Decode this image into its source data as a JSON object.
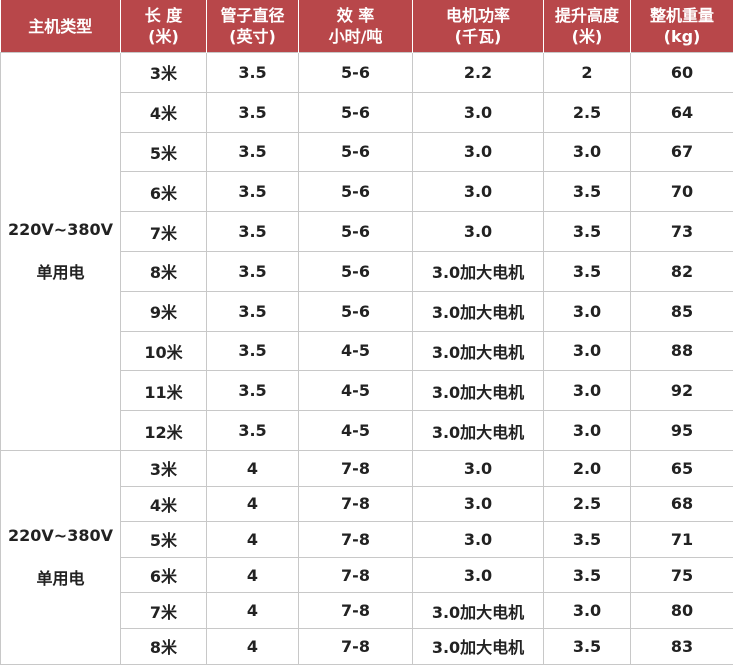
{
  "header": [
    [
      "主机类型"
    ],
    [
      "长 度",
      "(米)"
    ],
    [
      "管子直径",
      "(英寸)"
    ],
    [
      "效 率",
      "小时/吨"
    ],
    [
      "电机功率",
      "(千瓦)"
    ],
    [
      "提升高度",
      "(米)"
    ],
    [
      "整机重量",
      "(kg)"
    ]
  ],
  "groups": [
    {
      "type": [
        "220V~380V",
        "单用电"
      ],
      "rows": [
        [
          "3米",
          "3.5",
          "5-6",
          "2.2",
          "2",
          "60"
        ],
        [
          "4米",
          "3.5",
          "5-6",
          "3.0",
          "2.5",
          "64"
        ],
        [
          "5米",
          "3.5",
          "5-6",
          "3.0",
          "3.0",
          "67"
        ],
        [
          "6米",
          "3.5",
          "5-6",
          "3.0",
          "3.5",
          "70"
        ],
        [
          "7米",
          "3.5",
          "5-6",
          "3.0",
          "3.5",
          "73"
        ],
        [
          "8米",
          "3.5",
          "5-6",
          "3.0加大电机",
          "3.5",
          "82"
        ],
        [
          "9米",
          "3.5",
          "5-6",
          "3.0加大电机",
          "3.0",
          "85"
        ],
        [
          "10米",
          "3.5",
          "4-5",
          "3.0加大电机",
          "3.0",
          "88"
        ],
        [
          "11米",
          "3.5",
          "4-5",
          "3.0加大电机",
          "3.0",
          "92"
        ],
        [
          "12米",
          "3.5",
          "4-5",
          "3.0加大电机",
          "3.0",
          "95"
        ]
      ]
    },
    {
      "type": [
        "220V~380V",
        "单用电"
      ],
      "rows": [
        [
          "3米",
          "4",
          "7-8",
          "3.0",
          "2.0",
          "65"
        ],
        [
          "4米",
          "4",
          "7-8",
          "3.0",
          "2.5",
          "68"
        ],
        [
          "5米",
          "4",
          "7-8",
          "3.0",
          "3.5",
          "71"
        ],
        [
          "6米",
          "4",
          "7-8",
          "3.0",
          "3.5",
          "75"
        ],
        [
          "7米",
          "4",
          "7-8",
          "3.0加大电机",
          "3.0",
          "80"
        ],
        [
          "8米",
          "4",
          "7-8",
          "3.0加大电机",
          "3.5",
          "83"
        ]
      ]
    }
  ]
}
